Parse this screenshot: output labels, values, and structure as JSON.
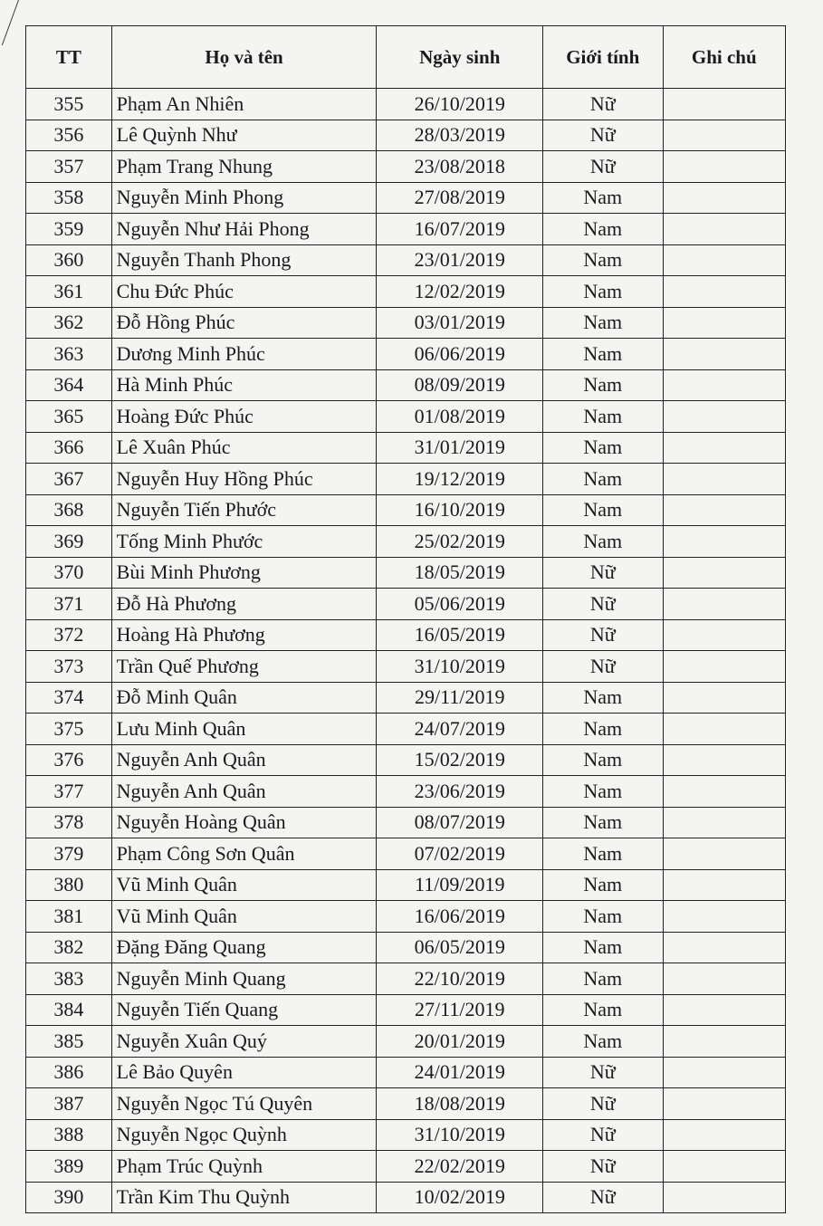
{
  "headers": {
    "tt": "TT",
    "name": "Họ và tên",
    "dob": "Ngày sinh",
    "gender": "Giới tính",
    "note": "Ghi chú"
  },
  "rows": [
    {
      "tt": "355",
      "name": "Phạm An Nhiên",
      "dob": "26/10/2019",
      "gender": "Nữ",
      "note": ""
    },
    {
      "tt": "356",
      "name": "Lê Quỳnh Như",
      "dob": "28/03/2019",
      "gender": "Nữ",
      "note": ""
    },
    {
      "tt": "357",
      "name": "Phạm Trang Nhung",
      "dob": "23/08/2018",
      "gender": "Nữ",
      "note": ""
    },
    {
      "tt": "358",
      "name": "Nguyễn Minh Phong",
      "dob": "27/08/2019",
      "gender": "Nam",
      "note": ""
    },
    {
      "tt": "359",
      "name": "Nguyễn Như Hải Phong",
      "dob": "16/07/2019",
      "gender": "Nam",
      "note": ""
    },
    {
      "tt": "360",
      "name": "Nguyễn Thanh Phong",
      "dob": "23/01/2019",
      "gender": "Nam",
      "note": ""
    },
    {
      "tt": "361",
      "name": "Chu Đức Phúc",
      "dob": "12/02/2019",
      "gender": "Nam",
      "note": ""
    },
    {
      "tt": "362",
      "name": "Đỗ Hồng Phúc",
      "dob": "03/01/2019",
      "gender": "Nam",
      "note": ""
    },
    {
      "tt": "363",
      "name": "Dương Minh Phúc",
      "dob": "06/06/2019",
      "gender": "Nam",
      "note": ""
    },
    {
      "tt": "364",
      "name": "Hà Minh Phúc",
      "dob": "08/09/2019",
      "gender": "Nam",
      "note": ""
    },
    {
      "tt": "365",
      "name": "Hoàng Đức Phúc",
      "dob": "01/08/2019",
      "gender": "Nam",
      "note": ""
    },
    {
      "tt": "366",
      "name": "Lê Xuân Phúc",
      "dob": "31/01/2019",
      "gender": "Nam",
      "note": ""
    },
    {
      "tt": "367",
      "name": "Nguyễn Huy Hồng Phúc",
      "dob": "19/12/2019",
      "gender": "Nam",
      "note": ""
    },
    {
      "tt": "368",
      "name": "Nguyễn Tiến Phước",
      "dob": "16/10/2019",
      "gender": "Nam",
      "note": ""
    },
    {
      "tt": "369",
      "name": "Tống Minh Phước",
      "dob": "25/02/2019",
      "gender": "Nam",
      "note": ""
    },
    {
      "tt": "370",
      "name": "Bùi Minh Phương",
      "dob": "18/05/2019",
      "gender": "Nữ",
      "note": ""
    },
    {
      "tt": "371",
      "name": "Đỗ Hà Phương",
      "dob": "05/06/2019",
      "gender": "Nữ",
      "note": ""
    },
    {
      "tt": "372",
      "name": "Hoàng Hà Phương",
      "dob": "16/05/2019",
      "gender": "Nữ",
      "note": ""
    },
    {
      "tt": "373",
      "name": "Trần Quế Phương",
      "dob": "31/10/2019",
      "gender": "Nữ",
      "note": ""
    },
    {
      "tt": "374",
      "name": "Đỗ Minh Quân",
      "dob": "29/11/2019",
      "gender": "Nam",
      "note": ""
    },
    {
      "tt": "375",
      "name": "Lưu Minh Quân",
      "dob": "24/07/2019",
      "gender": "Nam",
      "note": ""
    },
    {
      "tt": "376",
      "name": "Nguyễn Anh Quân",
      "dob": "15/02/2019",
      "gender": "Nam",
      "note": ""
    },
    {
      "tt": "377",
      "name": "Nguyễn Anh Quân",
      "dob": "23/06/2019",
      "gender": "Nam",
      "note": ""
    },
    {
      "tt": "378",
      "name": "Nguyễn Hoàng Quân",
      "dob": "08/07/2019",
      "gender": "Nam",
      "note": ""
    },
    {
      "tt": "379",
      "name": "Phạm Công Sơn Quân",
      "dob": "07/02/2019",
      "gender": "Nam",
      "note": ""
    },
    {
      "tt": "380",
      "name": "Vũ Minh Quân",
      "dob": "11/09/2019",
      "gender": "Nam",
      "note": ""
    },
    {
      "tt": "381",
      "name": "Vũ Minh Quân",
      "dob": "16/06/2019",
      "gender": "Nam",
      "note": ""
    },
    {
      "tt": "382",
      "name": "Đặng Đăng Quang",
      "dob": "06/05/2019",
      "gender": "Nam",
      "note": ""
    },
    {
      "tt": "383",
      "name": "Nguyễn Minh Quang",
      "dob": "22/10/2019",
      "gender": "Nam",
      "note": ""
    },
    {
      "tt": "384",
      "name": "Nguyễn Tiến Quang",
      "dob": "27/11/2019",
      "gender": "Nam",
      "note": ""
    },
    {
      "tt": "385",
      "name": "Nguyễn Xuân Quý",
      "dob": "20/01/2019",
      "gender": "Nam",
      "note": ""
    },
    {
      "tt": "386",
      "name": "Lê Bảo Quyên",
      "dob": "24/01/2019",
      "gender": "Nữ",
      "note": ""
    },
    {
      "tt": "387",
      "name": "Nguyễn Ngọc Tú Quyên",
      "dob": "18/08/2019",
      "gender": "Nữ",
      "note": ""
    },
    {
      "tt": "388",
      "name": "Nguyễn Ngọc Quỳnh",
      "dob": "31/10/2019",
      "gender": "Nữ",
      "note": ""
    },
    {
      "tt": "389",
      "name": "Phạm Trúc Quỳnh",
      "dob": "22/02/2019",
      "gender": "Nữ",
      "note": ""
    },
    {
      "tt": "390",
      "name": "Trần Kim Thu Quỳnh",
      "dob": "10/02/2019",
      "gender": "Nữ",
      "note": ""
    }
  ]
}
